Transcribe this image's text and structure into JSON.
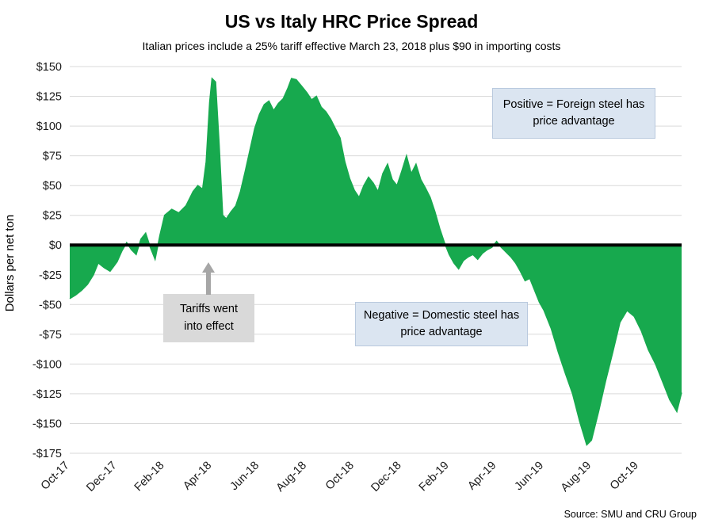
{
  "title": "US vs Italy HRC Price Spread",
  "subtitle": "Italian prices include a 25% tariff effective March 23, 2018 plus $90 in importing costs",
  "ylabel": "Dollars per net ton",
  "source": "Source: SMU and CRU Group",
  "annotations": {
    "positive": "Positive = Foreign steel has price advantage",
    "negative": "Negative = Domestic steel has price advantage",
    "tariffs": "Tariffs went into effect"
  },
  "colors": {
    "area": "#17a94e",
    "zero_line": "#000000",
    "grid": "#d9d9d9",
    "annotation_blue": "#dbe5f1",
    "annotation_gray": "#d9d9d9",
    "arrow": "#a6a6a6",
    "axis_text": "#1a1a1a"
  },
  "chart_data": {
    "type": "area",
    "title": "US vs Italy HRC Price Spread",
    "ylabel": "Dollars per net ton",
    "ylim": [
      -175,
      150
    ],
    "baseline": 0,
    "x_unit": "months since Oct-2017",
    "x_max": 25.8,
    "grid": true,
    "y_ticks": [
      {
        "v": 150,
        "label": "$150"
      },
      {
        "v": 125,
        "label": "$125"
      },
      {
        "v": 100,
        "label": "$100"
      },
      {
        "v": 75,
        "label": "$75"
      },
      {
        "v": 50,
        "label": "$50"
      },
      {
        "v": 25,
        "label": "$25"
      },
      {
        "v": 0,
        "label": "$0"
      },
      {
        "v": -25,
        "label": "-$25"
      },
      {
        "v": -50,
        "label": "-$50"
      },
      {
        "v": -75,
        "label": "-$75"
      },
      {
        "v": -100,
        "label": "-$100"
      },
      {
        "v": -125,
        "label": "-$125"
      },
      {
        "v": -150,
        "label": "-$150"
      },
      {
        "v": -175,
        "label": "-$175"
      }
    ],
    "x_ticks": [
      {
        "t": 0,
        "label": "Oct-17"
      },
      {
        "t": 2,
        "label": "Dec-17"
      },
      {
        "t": 4,
        "label": "Feb-18"
      },
      {
        "t": 6,
        "label": "Apr-18"
      },
      {
        "t": 8,
        "label": "Jun-18"
      },
      {
        "t": 10,
        "label": "Aug-18"
      },
      {
        "t": 12,
        "label": "Oct-18"
      },
      {
        "t": 14,
        "label": "Dec-18"
      },
      {
        "t": 16,
        "label": "Feb-19"
      },
      {
        "t": 18,
        "label": "Apr-19"
      },
      {
        "t": 20,
        "label": "Jun-19"
      },
      {
        "t": 22,
        "label": "Aug-19"
      },
      {
        "t": 24,
        "label": "Oct-19"
      }
    ],
    "points": [
      [
        0.0,
        -45
      ],
      [
        0.25,
        -42
      ],
      [
        0.5,
        -38
      ],
      [
        0.75,
        -33
      ],
      [
        1.0,
        -25
      ],
      [
        1.2,
        -15
      ],
      [
        1.45,
        -19
      ],
      [
        1.7,
        -22
      ],
      [
        1.85,
        -18
      ],
      [
        2.0,
        -14
      ],
      [
        2.2,
        -5
      ],
      [
        2.4,
        2
      ],
      [
        2.6,
        -4
      ],
      [
        2.8,
        -8
      ],
      [
        3.0,
        5
      ],
      [
        3.2,
        10
      ],
      [
        3.4,
        -2
      ],
      [
        3.6,
        -12
      ],
      [
        3.8,
        8
      ],
      [
        4.0,
        25
      ],
      [
        4.3,
        30
      ],
      [
        4.6,
        27
      ],
      [
        4.9,
        33
      ],
      [
        5.2,
        45
      ],
      [
        5.4,
        50
      ],
      [
        5.6,
        47
      ],
      [
        5.75,
        70
      ],
      [
        5.9,
        120
      ],
      [
        6.0,
        140
      ],
      [
        6.15,
        137
      ],
      [
        6.3,
        85
      ],
      [
        6.45,
        25
      ],
      [
        6.6,
        22
      ],
      [
        6.8,
        28
      ],
      [
        7.0,
        33
      ],
      [
        7.2,
        45
      ],
      [
        7.4,
        62
      ],
      [
        7.6,
        80
      ],
      [
        7.8,
        98
      ],
      [
        8.0,
        110
      ],
      [
        8.2,
        118
      ],
      [
        8.4,
        121
      ],
      [
        8.6,
        113
      ],
      [
        8.8,
        119
      ],
      [
        9.0,
        123
      ],
      [
        9.2,
        132
      ],
      [
        9.35,
        140
      ],
      [
        9.55,
        139
      ],
      [
        9.8,
        133
      ],
      [
        10.0,
        128
      ],
      [
        10.2,
        122
      ],
      [
        10.4,
        125
      ],
      [
        10.6,
        116
      ],
      [
        10.8,
        112
      ],
      [
        11.0,
        106
      ],
      [
        11.2,
        98
      ],
      [
        11.4,
        90
      ],
      [
        11.6,
        70
      ],
      [
        11.8,
        56
      ],
      [
        12.0,
        46
      ],
      [
        12.2,
        40
      ],
      [
        12.4,
        50
      ],
      [
        12.6,
        57
      ],
      [
        12.8,
        52
      ],
      [
        13.0,
        45
      ],
      [
        13.2,
        60
      ],
      [
        13.4,
        68
      ],
      [
        13.6,
        55
      ],
      [
        13.8,
        50
      ],
      [
        14.0,
        62
      ],
      [
        14.2,
        75
      ],
      [
        14.4,
        60
      ],
      [
        14.6,
        68
      ],
      [
        14.8,
        55
      ],
      [
        15.0,
        48
      ],
      [
        15.2,
        40
      ],
      [
        15.4,
        28
      ],
      [
        15.6,
        14
      ],
      [
        15.8,
        2
      ],
      [
        16.0,
        -8
      ],
      [
        16.2,
        -15
      ],
      [
        16.4,
        -20
      ],
      [
        16.6,
        -13
      ],
      [
        16.8,
        -10
      ],
      [
        17.0,
        -8
      ],
      [
        17.2,
        -12
      ],
      [
        17.4,
        -7
      ],
      [
        17.6,
        -4
      ],
      [
        17.8,
        -2
      ],
      [
        18.0,
        3
      ],
      [
        18.2,
        -2
      ],
      [
        18.4,
        -6
      ],
      [
        18.6,
        -10
      ],
      [
        18.8,
        -15
      ],
      [
        19.0,
        -22
      ],
      [
        19.2,
        -30
      ],
      [
        19.4,
        -28
      ],
      [
        19.6,
        -38
      ],
      [
        19.8,
        -48
      ],
      [
        20.0,
        -55
      ],
      [
        20.3,
        -70
      ],
      [
        20.6,
        -90
      ],
      [
        20.9,
        -108
      ],
      [
        21.2,
        -125
      ],
      [
        21.5,
        -148
      ],
      [
        21.8,
        -168
      ],
      [
        22.0,
        -164
      ],
      [
        22.3,
        -140
      ],
      [
        22.6,
        -114
      ],
      [
        22.9,
        -90
      ],
      [
        23.2,
        -65
      ],
      [
        23.5,
        -55
      ],
      [
        23.8,
        -60
      ],
      [
        24.1,
        -72
      ],
      [
        24.4,
        -88
      ],
      [
        24.7,
        -100
      ],
      [
        25.0,
        -115
      ],
      [
        25.3,
        -130
      ],
      [
        25.6,
        -140
      ],
      [
        25.8,
        -124
      ]
    ]
  }
}
